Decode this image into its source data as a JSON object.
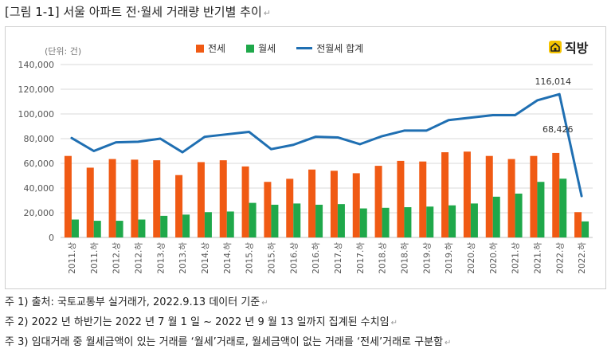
{
  "title": "[그림 1-1] 서울 아파트 전·월세 거래량 반기별 추이",
  "para_mark": "↵",
  "logo": {
    "brand": "직방",
    "icon": "house-icon"
  },
  "unit_label": "(단위: 건)",
  "notes": [
    "주 1) 출처: 국토교통부 실거래가, 2022.9.13 데이터 기준",
    "주 2) 2022 년 하반기는 2022 년 7 월 1 일 ~ 2022 년 9 월 13 일까지 집계된 수치임",
    "주 3) 임대거래 중 월세금액이 있는 거래를 ‘월세’거래로, 월세금액이 없는 거래를 ‘전세’거래로 구분함"
  ],
  "chart_data": {
    "type": "bar",
    "categories": [
      "2011.상",
      "2011.하",
      "2012.상",
      "2012.하",
      "2013.상",
      "2013.하",
      "2014.상",
      "2014.하",
      "2015.상",
      "2015.하",
      "2016.상",
      "2016.하",
      "2017.상",
      "2017.하",
      "2018.상",
      "2018.하",
      "2019.상",
      "2019.하",
      "2020.상",
      "2020.하",
      "2021.상",
      "2021.하",
      "2022.상",
      "2022.하"
    ],
    "series": [
      {
        "name": "전세",
        "kind": "bar",
        "color": "#f05a14",
        "values": [
          66000,
          56500,
          63500,
          63000,
          62500,
          50500,
          61000,
          62500,
          57500,
          45000,
          47500,
          55000,
          54000,
          52000,
          58000,
          62000,
          61500,
          69000,
          69500,
          66000,
          63500,
          66000,
          68426,
          20500
        ]
      },
      {
        "name": "월세",
        "kind": "bar",
        "color": "#1fa84a",
        "values": [
          14500,
          13500,
          13500,
          14500,
          17500,
          18500,
          20500,
          21000,
          28000,
          26500,
          27500,
          26500,
          27000,
          23500,
          24000,
          24500,
          25000,
          26000,
          27500,
          33000,
          35500,
          45000,
          47588,
          13000
        ]
      },
      {
        "name": "전월세 합계",
        "kind": "line",
        "color": "#1f6fb2",
        "values": [
          80500,
          70000,
          77000,
          77500,
          80000,
          69000,
          81500,
          83500,
          85500,
          71500,
          75000,
          81500,
          81000,
          75500,
          82000,
          86500,
          86500,
          95000,
          97000,
          99000,
          99000,
          111000,
          116014,
          33500
        ]
      }
    ],
    "annotations": [
      {
        "category": "2022.상",
        "series": "전월세 합계",
        "label": "116,014"
      },
      {
        "category": "2022.상",
        "series": "전세",
        "label": "68,426"
      }
    ],
    "ylim": [
      0,
      140000
    ],
    "yticks": [
      0,
      20000,
      40000,
      60000,
      80000,
      100000,
      120000,
      140000
    ],
    "ytick_labels": [
      "0",
      "20,000",
      "40,000",
      "60,000",
      "80,000",
      "100,000",
      "120,000",
      "140,000"
    ],
    "grid": true,
    "legend_position": "top",
    "xlabel": "",
    "ylabel": ""
  }
}
